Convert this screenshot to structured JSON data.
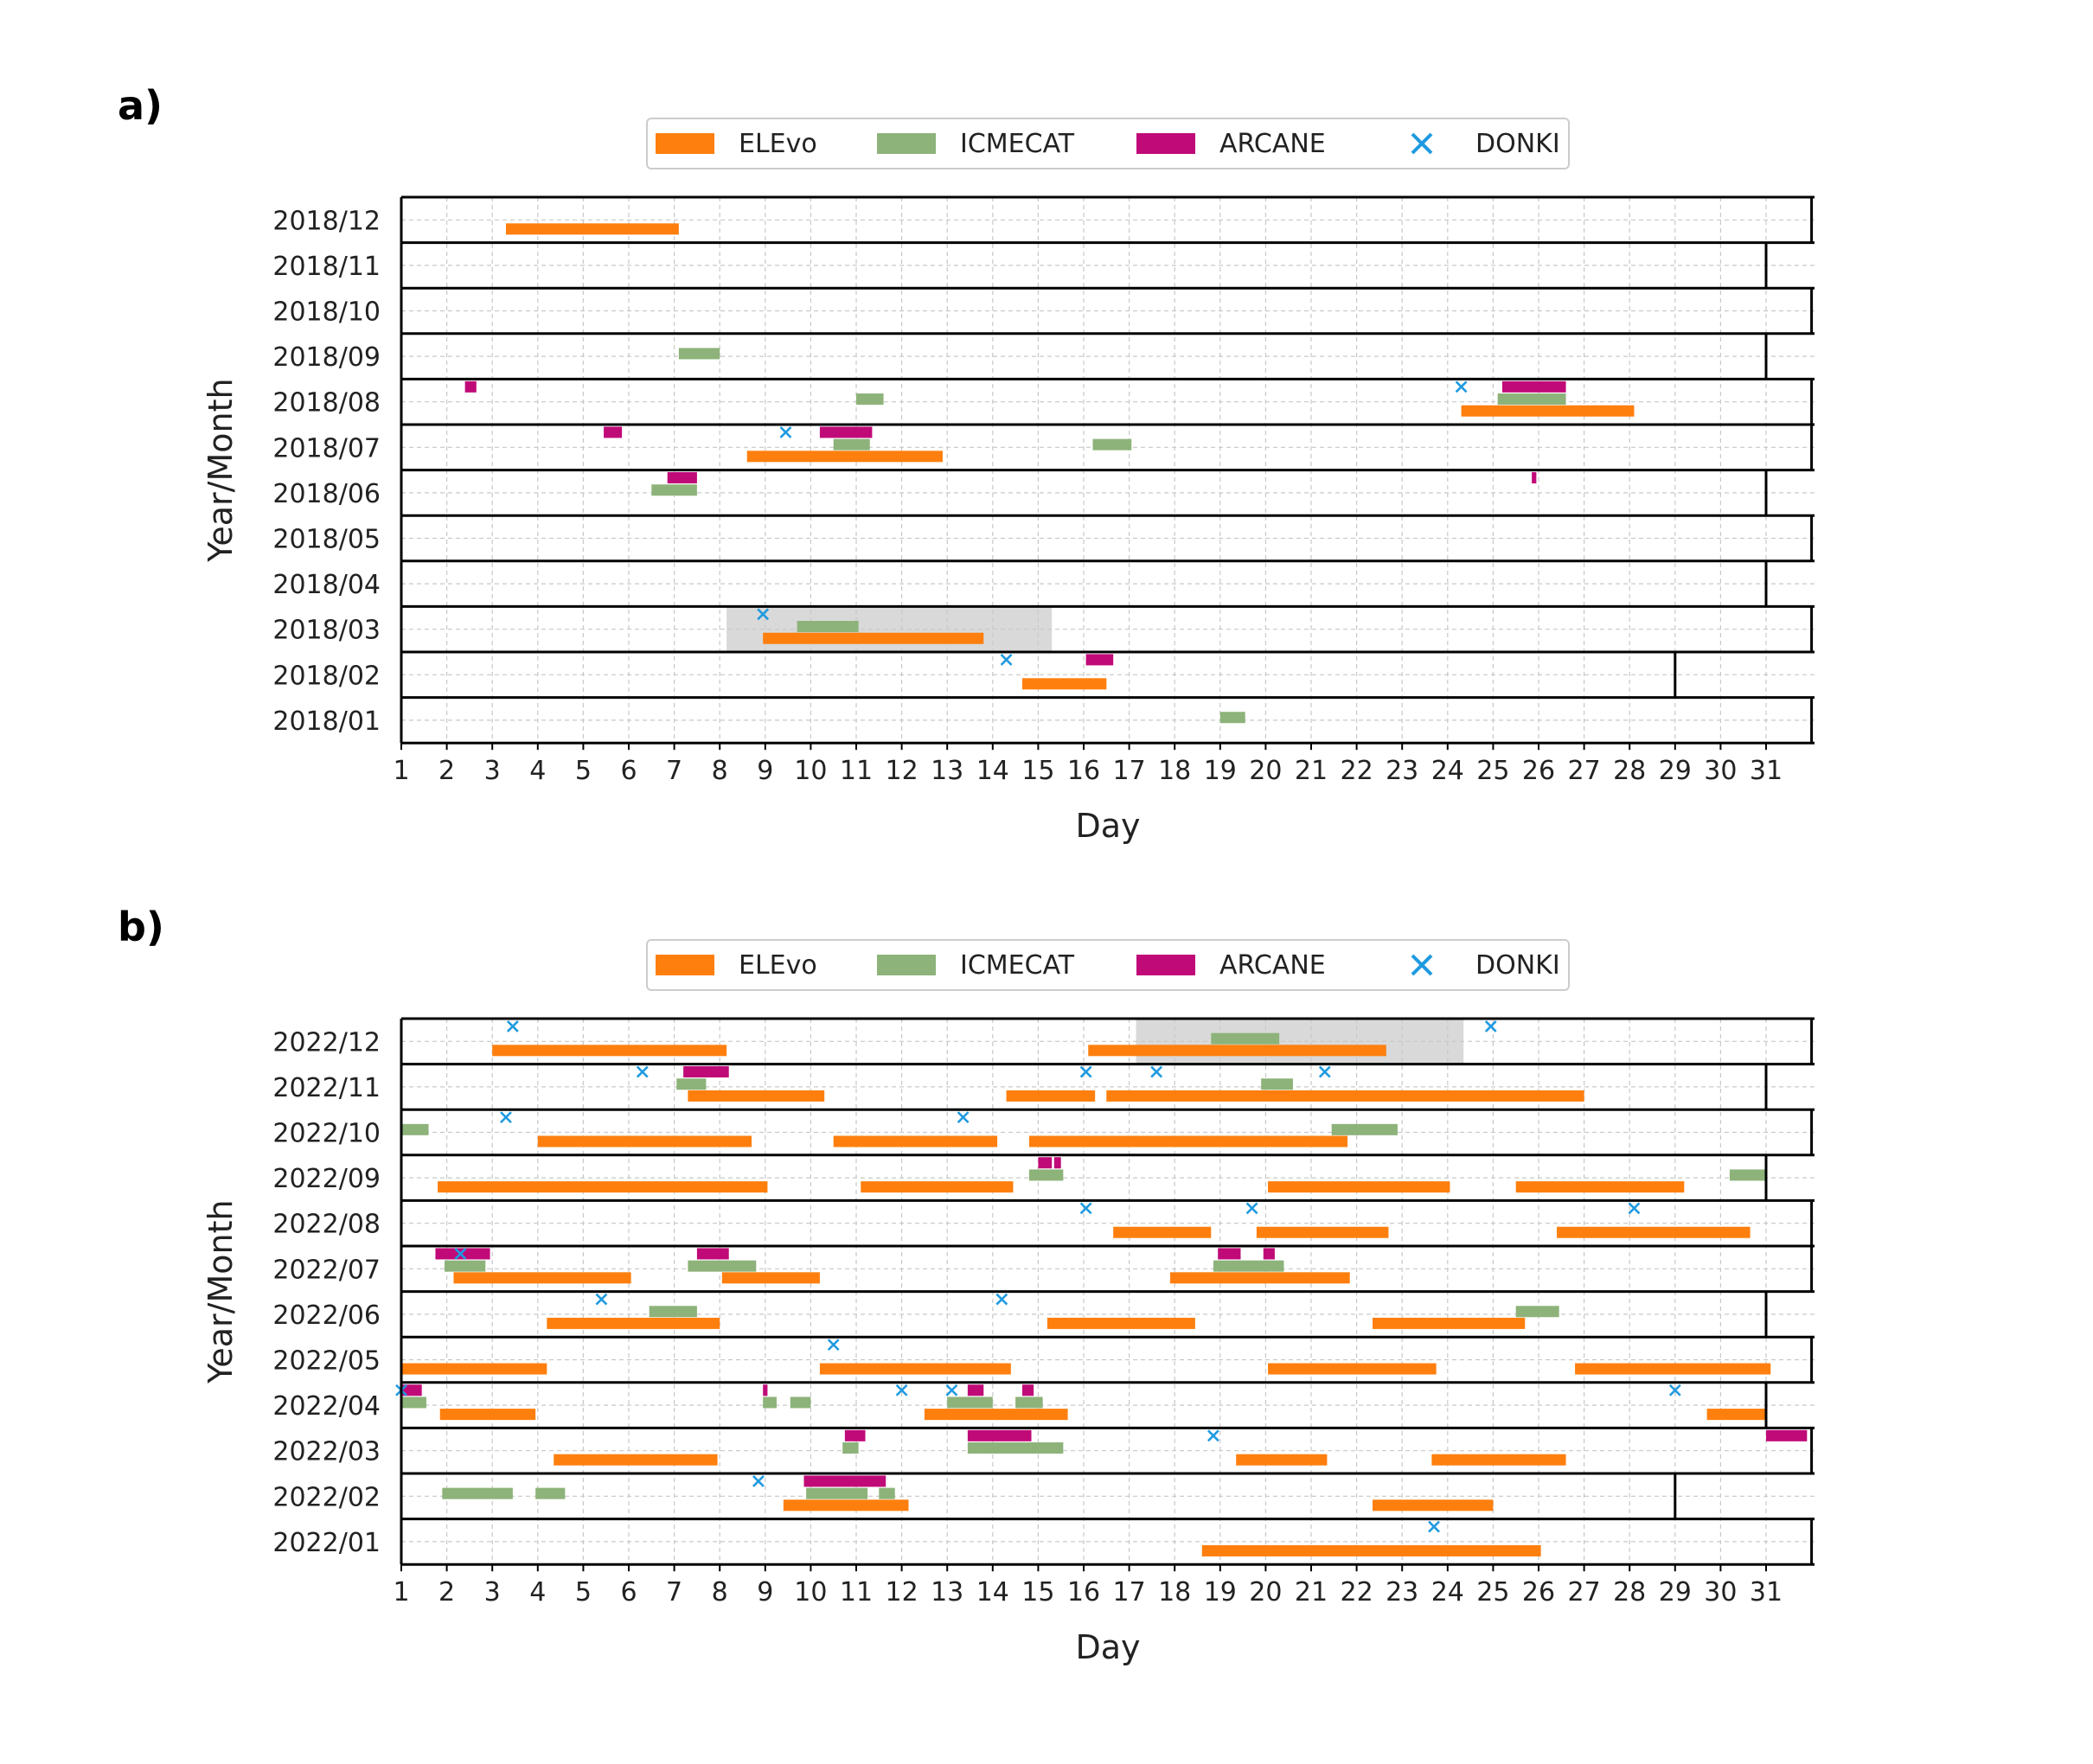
{
  "colors": {
    "ELEvo": "#ff7f0e",
    "ICMECAT": "#8db37a",
    "ARCANE": "#c00a78",
    "DONKI": "#1f9ae0",
    "highlight": "#d9d9d9"
  },
  "legend": {
    "ELEvo": "ELEvo",
    "ICMECAT": "ICMECAT",
    "ARCANE": "ARCANE",
    "DONKI": "DONKI"
  },
  "chart_data": [
    {
      "type": "timeline",
      "panel_label": "a)",
      "xlabel": "Day",
      "ylabel": "Year/Month",
      "xticks": [
        1,
        2,
        3,
        4,
        5,
        6,
        7,
        8,
        9,
        10,
        11,
        12,
        13,
        14,
        15,
        16,
        17,
        18,
        19,
        20,
        21,
        22,
        23,
        24,
        25,
        26,
        27,
        28,
        29,
        30,
        31
      ],
      "months": [
        {
          "label": "2018/12",
          "days": 31
        },
        {
          "label": "2018/11",
          "days": 30
        },
        {
          "label": "2018/10",
          "days": 31
        },
        {
          "label": "2018/09",
          "days": 30
        },
        {
          "label": "2018/08",
          "days": 31
        },
        {
          "label": "2018/07",
          "days": 31
        },
        {
          "label": "2018/06",
          "days": 30
        },
        {
          "label": "2018/05",
          "days": 31
        },
        {
          "label": "2018/04",
          "days": 30
        },
        {
          "label": "2018/03",
          "days": 31
        },
        {
          "label": "2018/02",
          "days": 28
        },
        {
          "label": "2018/01",
          "days": 31
        }
      ],
      "highlights": [
        {
          "month": "2018/03",
          "start": 8.15,
          "end": 15.3
        }
      ],
      "bars": {
        "ELEvo": [
          [
            "2018/12",
            3.3,
            7.1
          ],
          [
            "2018/08",
            24.3,
            28.1
          ],
          [
            "2018/07",
            8.6,
            12.9
          ],
          [
            "2018/03",
            8.95,
            13.8
          ],
          [
            "2018/02",
            14.65,
            16.5
          ]
        ],
        "ICMECAT": [
          [
            "2018/09",
            7.1,
            8.0
          ],
          [
            "2018/08",
            11.0,
            11.6
          ],
          [
            "2018/08",
            25.1,
            26.6
          ],
          [
            "2018/07",
            10.5,
            11.3
          ],
          [
            "2018/07",
            16.2,
            17.05
          ],
          [
            "2018/06",
            6.5,
            7.5
          ],
          [
            "2018/03",
            9.7,
            11.05
          ],
          [
            "2018/01",
            19.0,
            19.55
          ]
        ],
        "ARCANE": [
          [
            "2018/08",
            2.4,
            2.65
          ],
          [
            "2018/08",
            25.2,
            26.6
          ],
          [
            "2018/07",
            5.45,
            5.85
          ],
          [
            "2018/07",
            10.2,
            11.35
          ],
          [
            "2018/06",
            6.85,
            7.5
          ],
          [
            "2018/06",
            25.85,
            25.95
          ],
          [
            "2018/02",
            16.05,
            16.65
          ]
        ]
      },
      "donki": [
        [
          "2018/08",
          24.3
        ],
        [
          "2018/07",
          9.45
        ],
        [
          "2018/03",
          8.95
        ],
        [
          "2018/02",
          14.3
        ]
      ]
    },
    {
      "type": "timeline",
      "panel_label": "b)",
      "xlabel": "Day",
      "ylabel": "Year/Month",
      "xticks": [
        1,
        2,
        3,
        4,
        5,
        6,
        7,
        8,
        9,
        10,
        11,
        12,
        13,
        14,
        15,
        16,
        17,
        18,
        19,
        20,
        21,
        22,
        23,
        24,
        25,
        26,
        27,
        28,
        29,
        30,
        31
      ],
      "months": [
        {
          "label": "2022/12",
          "days": 31
        },
        {
          "label": "2022/11",
          "days": 30
        },
        {
          "label": "2022/10",
          "days": 31
        },
        {
          "label": "2022/09",
          "days": 30
        },
        {
          "label": "2022/08",
          "days": 31
        },
        {
          "label": "2022/07",
          "days": 31
        },
        {
          "label": "2022/06",
          "days": 30
        },
        {
          "label": "2022/05",
          "days": 31
        },
        {
          "label": "2022/04",
          "days": 30
        },
        {
          "label": "2022/03",
          "days": 31
        },
        {
          "label": "2022/02",
          "days": 28
        },
        {
          "label": "2022/01",
          "days": 31
        }
      ],
      "highlights": [
        {
          "month": "2022/12",
          "start": 17.15,
          "end": 24.35
        }
      ],
      "bars": {
        "ELEvo": [
          [
            "2022/12",
            3.0,
            8.15
          ],
          [
            "2022/12",
            16.1,
            22.65
          ],
          [
            "2022/11",
            7.3,
            10.3
          ],
          [
            "2022/11",
            14.3,
            16.25
          ],
          [
            "2022/11",
            16.5,
            27.0
          ],
          [
            "2022/10",
            4.0,
            8.7
          ],
          [
            "2022/10",
            10.5,
            14.1
          ],
          [
            "2022/10",
            14.8,
            21.8
          ],
          [
            "2022/09",
            1.8,
            9.05
          ],
          [
            "2022/09",
            11.1,
            14.45
          ],
          [
            "2022/09",
            20.05,
            24.05
          ],
          [
            "2022/09",
            25.5,
            29.2
          ],
          [
            "2022/08",
            16.65,
            18.8
          ],
          [
            "2022/08",
            19.8,
            22.7
          ],
          [
            "2022/08",
            26.4,
            30.65
          ],
          [
            "2022/07",
            2.15,
            6.05
          ],
          [
            "2022/07",
            8.05,
            10.2
          ],
          [
            "2022/07",
            17.9,
            21.85
          ],
          [
            "2022/06",
            4.2,
            8.0
          ],
          [
            "2022/06",
            15.2,
            18.45
          ],
          [
            "2022/06",
            22.35,
            25.7
          ],
          [
            "2022/05",
            1.0,
            4.2
          ],
          [
            "2022/05",
            10.2,
            14.4
          ],
          [
            "2022/05",
            20.05,
            23.75
          ],
          [
            "2022/05",
            26.8,
            31.1
          ],
          [
            "2022/04",
            1.85,
            3.95
          ],
          [
            "2022/04",
            12.5,
            15.65
          ],
          [
            "2022/04",
            29.7,
            31.0
          ],
          [
            "2022/03",
            4.35,
            7.95
          ],
          [
            "2022/03",
            19.35,
            21.35
          ],
          [
            "2022/03",
            23.65,
            26.6
          ],
          [
            "2022/02",
            9.4,
            12.15
          ],
          [
            "2022/02",
            22.35,
            25.0
          ],
          [
            "2022/01",
            18.6,
            26.05
          ]
        ],
        "ICMECAT": [
          [
            "2022/12",
            18.8,
            20.3
          ],
          [
            "2022/11",
            7.05,
            7.7
          ],
          [
            "2022/11",
            19.9,
            20.6
          ],
          [
            "2022/10",
            1.0,
            1.6
          ],
          [
            "2022/10",
            21.45,
            22.9
          ],
          [
            "2022/09",
            14.8,
            15.55
          ],
          [
            "2022/09",
            30.2,
            31.0
          ],
          [
            "2022/07",
            1.95,
            2.85
          ],
          [
            "2022/07",
            7.3,
            8.8
          ],
          [
            "2022/07",
            18.85,
            20.4
          ],
          [
            "2022/06",
            6.45,
            7.5
          ],
          [
            "2022/06",
            25.5,
            26.45
          ],
          [
            "2022/04",
            1.0,
            1.55
          ],
          [
            "2022/04",
            8.95,
            9.25
          ],
          [
            "2022/04",
            9.55,
            10.0
          ],
          [
            "2022/04",
            13.0,
            14.0
          ],
          [
            "2022/04",
            14.5,
            15.1
          ],
          [
            "2022/03",
            10.7,
            11.05
          ],
          [
            "2022/03",
            13.45,
            15.55
          ],
          [
            "2022/02",
            1.9,
            3.45
          ],
          [
            "2022/02",
            3.95,
            4.6
          ],
          [
            "2022/02",
            9.9,
            11.25
          ],
          [
            "2022/02",
            11.5,
            11.85
          ]
        ],
        "ARCANE": [
          [
            "2022/11",
            7.2,
            8.2
          ],
          [
            "2022/09",
            15.0,
            15.3
          ],
          [
            "2022/09",
            15.35,
            15.5
          ],
          [
            "2022/07",
            1.75,
            2.95
          ],
          [
            "2022/07",
            7.5,
            8.2
          ],
          [
            "2022/07",
            18.95,
            19.45
          ],
          [
            "2022/07",
            19.95,
            20.2
          ],
          [
            "2022/04",
            1.0,
            1.45
          ],
          [
            "2022/04",
            8.95,
            9.05
          ],
          [
            "2022/04",
            13.45,
            13.8
          ],
          [
            "2022/04",
            14.65,
            14.9
          ],
          [
            "2022/03",
            10.75,
            11.2
          ],
          [
            "2022/03",
            13.45,
            14.85
          ],
          [
            "2022/03",
            31.0,
            31.9
          ],
          [
            "2022/02",
            9.85,
            11.65
          ]
        ]
      },
      "donki": [
        [
          "2022/12",
          3.45
        ],
        [
          "2022/12",
          24.95
        ],
        [
          "2022/11",
          6.3
        ],
        [
          "2022/11",
          16.05
        ],
        [
          "2022/11",
          17.6
        ],
        [
          "2022/11",
          21.3
        ],
        [
          "2022/10",
          3.3
        ],
        [
          "2022/10",
          13.35
        ],
        [
          "2022/08",
          16.05
        ],
        [
          "2022/08",
          19.7
        ],
        [
          "2022/08",
          28.1
        ],
        [
          "2022/07",
          2.3
        ],
        [
          "2022/06",
          5.4
        ],
        [
          "2022/06",
          14.2
        ],
        [
          "2022/05",
          10.5
        ],
        [
          "2022/04",
          1.0
        ],
        [
          "2022/04",
          12.0
        ],
        [
          "2022/04",
          13.1
        ],
        [
          "2022/04",
          29.0
        ],
        [
          "2022/03",
          18.85
        ],
        [
          "2022/02",
          8.85
        ],
        [
          "2022/01",
          23.7
        ]
      ]
    }
  ]
}
